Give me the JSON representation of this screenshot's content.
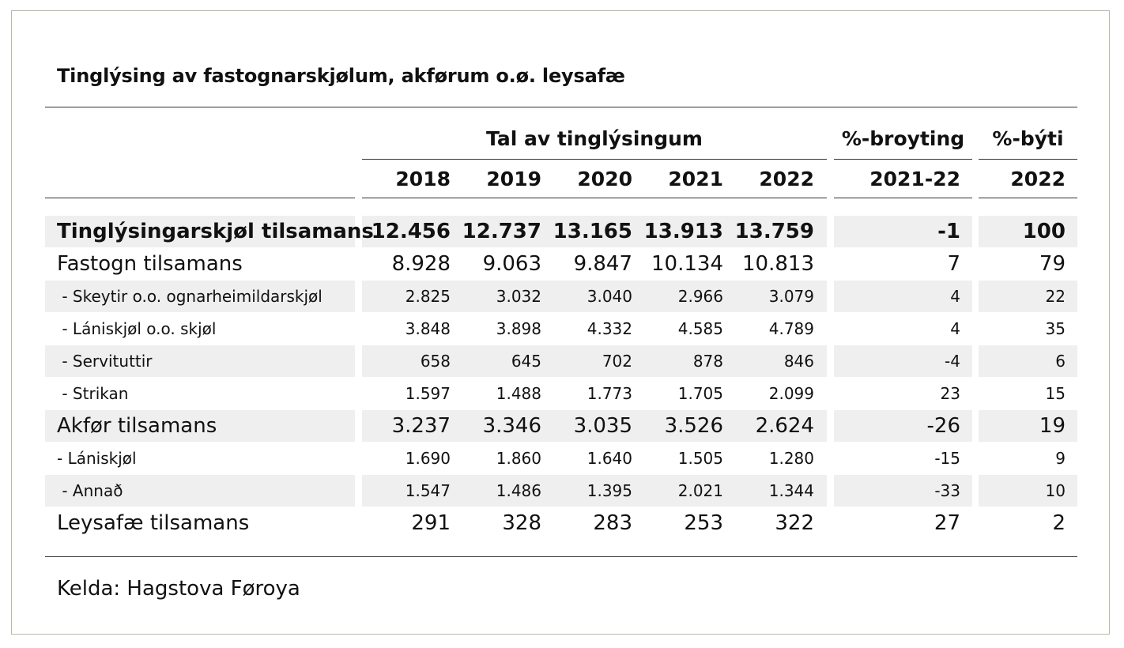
{
  "title": "Tinglýsing av fastognarskjølum, akførum o.ø. leysafæ",
  "header": {
    "group_label": "Tal av tinglýsingum",
    "change_label": "%-broyting",
    "share_label": "%-býti",
    "years": [
      "2018",
      "2019",
      "2020",
      "2021",
      "2022"
    ],
    "change_period": "2021-22",
    "share_year": "2022"
  },
  "rows": [
    {
      "label": "Tinglýsingarskjøl tilsamans",
      "values": [
        "12.456",
        "12.737",
        "13.165",
        "13.913",
        "13.759"
      ],
      "change": "-1",
      "share": "100",
      "style": "total",
      "shaded": true
    },
    {
      "label": "Fastogn tilsamans",
      "values": [
        "8.928",
        "9.063",
        "9.847",
        "10.134",
        "10.813"
      ],
      "change": "7",
      "share": "79",
      "style": "subtotal",
      "shaded": false
    },
    {
      "label": " - Skeytir o.o. ognarheimildarskjøl",
      "values": [
        "2.825",
        "3.032",
        "3.040",
        "2.966",
        "3.079"
      ],
      "change": "4",
      "share": "22",
      "style": "detail",
      "shaded": true
    },
    {
      "label": " - Lániskjøl o.o. skjøl",
      "values": [
        "3.848",
        "3.898",
        "4.332",
        "4.585",
        "4.789"
      ],
      "change": "4",
      "share": "35",
      "style": "detail",
      "shaded": false
    },
    {
      "label": " - Servituttir",
      "values": [
        "658",
        "645",
        "702",
        "878",
        "846"
      ],
      "change": "-4",
      "share": "6",
      "style": "detail",
      "shaded": true
    },
    {
      "label": " - Strikan",
      "values": [
        "1.597",
        "1.488",
        "1.773",
        "1.705",
        "2.099"
      ],
      "change": "23",
      "share": "15",
      "style": "detail",
      "shaded": false
    },
    {
      "label": "Akfør tilsamans",
      "values": [
        "3.237",
        "3.346",
        "3.035",
        "3.526",
        "2.624"
      ],
      "change": "-26",
      "share": "19",
      "style": "subtotal",
      "shaded": true
    },
    {
      "label": "- Lániskjøl",
      "values": [
        "1.690",
        "1.860",
        "1.640",
        "1.505",
        "1.280"
      ],
      "change": "-15",
      "share": "9",
      "style": "detail",
      "shaded": false
    },
    {
      "label": " - Annað",
      "values": [
        "1.547",
        "1.486",
        "1.395",
        "2.021",
        "1.344"
      ],
      "change": "-33",
      "share": "10",
      "style": "detail",
      "shaded": true
    },
    {
      "label": "Leysafæ tilsamans",
      "values": [
        "291",
        "328",
        "283",
        "253",
        "322"
      ],
      "change": "27",
      "share": "2",
      "style": "subtotal",
      "shaded": false
    }
  ],
  "source": "Kelda: Hagstova Føroya",
  "colors": {
    "band": "#efefef",
    "rule": "#333333",
    "frame": "#b9b9a8"
  }
}
